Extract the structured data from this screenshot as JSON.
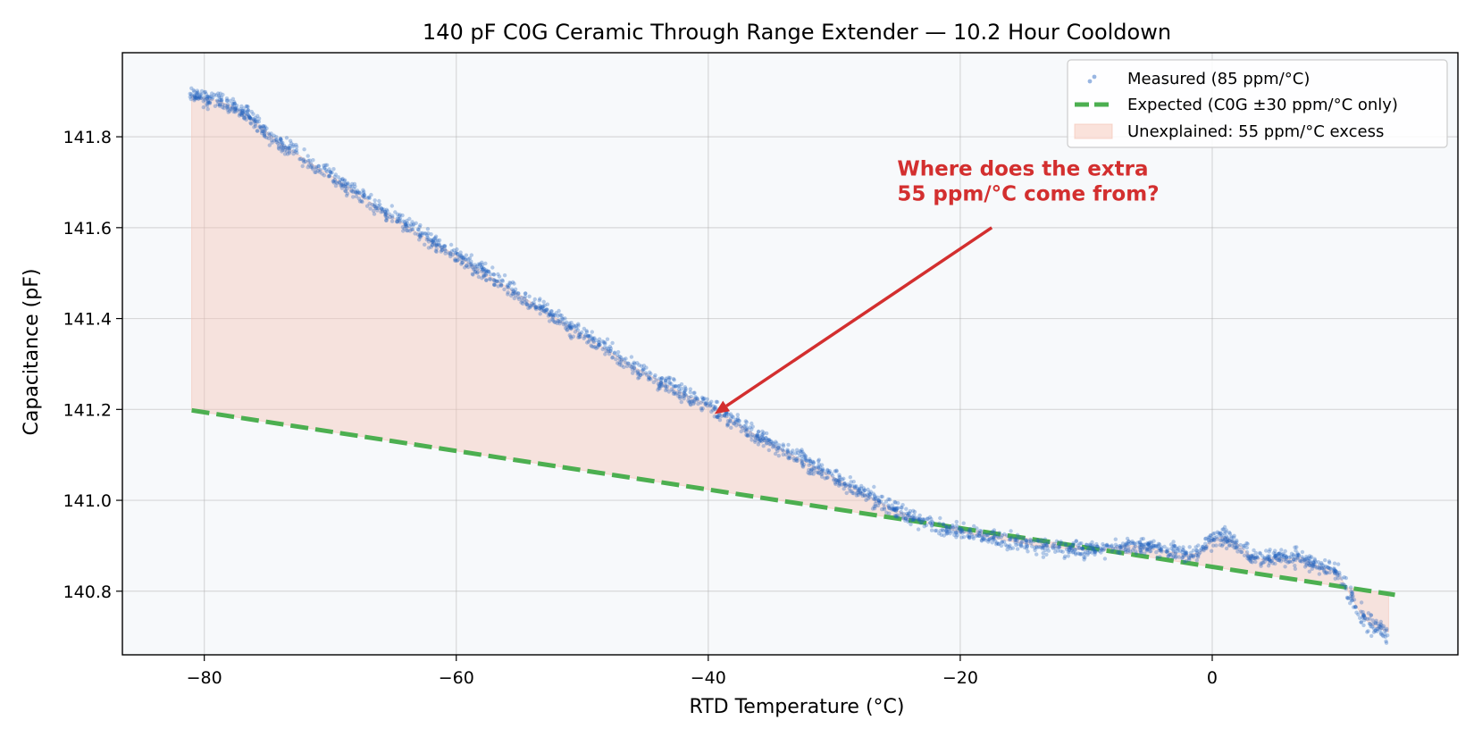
{
  "chart_data": {
    "type": "scatter",
    "title": "140 pF C0G Ceramic Through Range Extender — 10.2 Hour Cooldown",
    "xlabel": "RTD Temperature (°C)",
    "ylabel": "Capacitance (pF)",
    "xlim": [
      -86.5,
      19.5
    ],
    "ylim": [
      140.66,
      141.985
    ],
    "xticks": [
      -80,
      -60,
      -40,
      -20,
      0
    ],
    "xtick_labels": [
      "−80",
      "−60",
      "−40",
      "−20",
      "0"
    ],
    "yticks": [
      140.8,
      141.0,
      141.2,
      141.4,
      141.6,
      141.8
    ],
    "ytick_labels": [
      "140.8",
      "141.0",
      "141.2",
      "141.4",
      "141.6",
      "141.8"
    ],
    "grid": true,
    "legend_position": "top-right",
    "colors": {
      "measured": "#1f5fbf",
      "expected": "#4caf50",
      "fill": "#f5c6b8",
      "annotation": "#d32f2f",
      "plot_background": "#f7f9fb"
    },
    "series": [
      {
        "name": "Measured (85 ppm/°C)",
        "kind": "scatter",
        "x": [
          -81,
          -80,
          -79,
          -78,
          -77,
          -76,
          -75,
          -74,
          -73,
          -72,
          -70,
          -68,
          -66,
          -64,
          -62,
          -60,
          -58,
          -56,
          -54,
          -52,
          -50,
          -48,
          -46,
          -44,
          -42,
          -40,
          -38,
          -36,
          -34,
          -32,
          -30,
          -28,
          -26,
          -24,
          -22,
          -20,
          -18,
          -16,
          -14,
          -12,
          -10,
          -8,
          -7,
          -6,
          -5,
          -4,
          -3,
          -2,
          -1,
          0,
          1,
          2,
          3,
          4,
          5,
          6,
          7,
          8,
          9,
          10,
          11,
          12,
          13,
          14
        ],
        "y": [
          141.89,
          141.885,
          141.88,
          141.87,
          141.855,
          141.835,
          141.81,
          141.785,
          141.77,
          141.75,
          141.715,
          141.68,
          141.64,
          141.605,
          141.57,
          141.54,
          141.505,
          141.47,
          141.435,
          141.4,
          141.365,
          141.33,
          141.295,
          141.265,
          141.235,
          141.21,
          141.175,
          141.14,
          141.11,
          141.08,
          141.05,
          141.02,
          140.99,
          140.965,
          140.945,
          140.93,
          140.92,
          140.91,
          140.9,
          140.895,
          140.89,
          140.895,
          140.9,
          140.9,
          140.895,
          140.89,
          140.885,
          140.88,
          140.885,
          140.915,
          140.92,
          140.905,
          140.88,
          140.87,
          140.875,
          140.87,
          140.875,
          140.86,
          140.85,
          140.84,
          140.79,
          140.74,
          140.72,
          140.71
        ]
      },
      {
        "name": "Expected (C0G ±30 ppm/°C only)",
        "kind": "line",
        "style": "dashed",
        "x": [
          -81,
          14.5
        ],
        "y": [
          141.198,
          140.792
        ]
      },
      {
        "name": "Unexplained: 55 ppm/°C excess",
        "kind": "fill_between",
        "between": [
          "Measured (85 ppm/°C)",
          "Expected (C0G ±30 ppm/°C only)"
        ]
      }
    ],
    "annotations": [
      {
        "text_lines": [
          "Where does the extra",
          "55 ppm/°C come from?"
        ],
        "text_anchor": [
          -25,
          141.66
        ],
        "arrow_tail": [
          -17.5,
          141.6
        ],
        "arrow_head": [
          -39.5,
          141.19
        ]
      }
    ]
  }
}
